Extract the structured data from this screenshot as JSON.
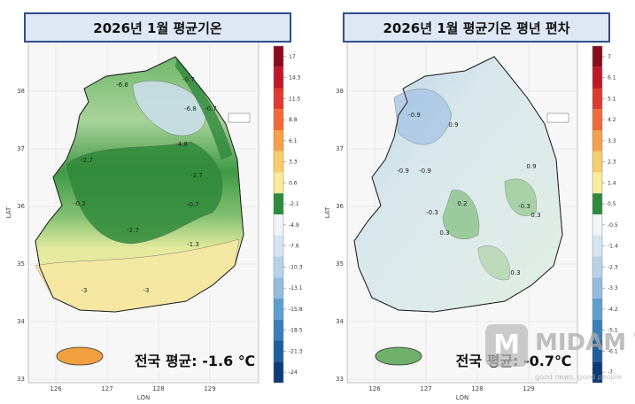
{
  "panels": [
    {
      "title": "2026년 1월 평균기온",
      "x_label": "LON",
      "y_label": "LAT",
      "xticks": [
        126,
        127,
        128,
        129
      ],
      "yticks": [
        33,
        34,
        35,
        36,
        37,
        38
      ],
      "colorbar": {
        "ticks": [
          17,
          14.3,
          11.5,
          8.8,
          6.1,
          3.3,
          0.6,
          -2.1,
          -4.9,
          -7.6,
          -10.3,
          -13.1,
          -15.8,
          -18.5,
          -21.3,
          -24
        ],
        "colors": [
          "#8b0a1e",
          "#c0182a",
          "#e03a2e",
          "#f06a3a",
          "#f5a04a",
          "#f7cc6a",
          "#fbeb9a",
          "#2e8b3e",
          "#f0f4f6",
          "#d6e4ef",
          "#b8d2e8",
          "#92bddc",
          "#5f9fcc",
          "#3b7fb8",
          "#1f5f9e",
          "#0c3c78"
        ]
      },
      "contour_labels": [
        -6.8,
        -6.8,
        -0.7,
        -0.7,
        -4.8,
        -2.7,
        -2.7,
        -2.7,
        -0.7,
        -1.3,
        -3,
        -3,
        -0.2
      ],
      "annotation": "전국 평균: -1.6 ℃"
    },
    {
      "title": "2026년 1월 평균기온 평년 편차",
      "x_label": "LON",
      "y_label": "LAT",
      "xticks": [
        126,
        127,
        128,
        129
      ],
      "yticks": [
        33,
        34,
        35,
        36,
        37,
        38
      ],
      "colorbar": {
        "ticks": [
          7,
          6.1,
          5.1,
          4.2,
          3.3,
          2.3,
          1.4,
          0.5,
          -0.5,
          -1.4,
          -2.3,
          -3.3,
          -4.2,
          -5.1,
          -6.1,
          -7
        ],
        "colors": [
          "#8b0a1e",
          "#c0182a",
          "#e03a2e",
          "#f06a3a",
          "#f5a04a",
          "#f7cc6a",
          "#fbeb9a",
          "#2e8b3e",
          "#f0f4f6",
          "#d6e4ef",
          "#b8d2e8",
          "#92bddc",
          "#5f9fcc",
          "#3b7fb8",
          "#1f5f9e",
          "#0c3c78"
        ]
      },
      "contour_labels": [
        -0.9,
        0.9,
        -0.9,
        0.9,
        0.2,
        -0.3,
        0.3,
        -0.3,
        0.3,
        0.3,
        -0.9
      ],
      "annotation": "전국 평균: -0.7℃"
    }
  ],
  "watermark": {
    "logo": "M",
    "text": "MIDAM TIMES",
    "slogan": "good news, good people"
  }
}
